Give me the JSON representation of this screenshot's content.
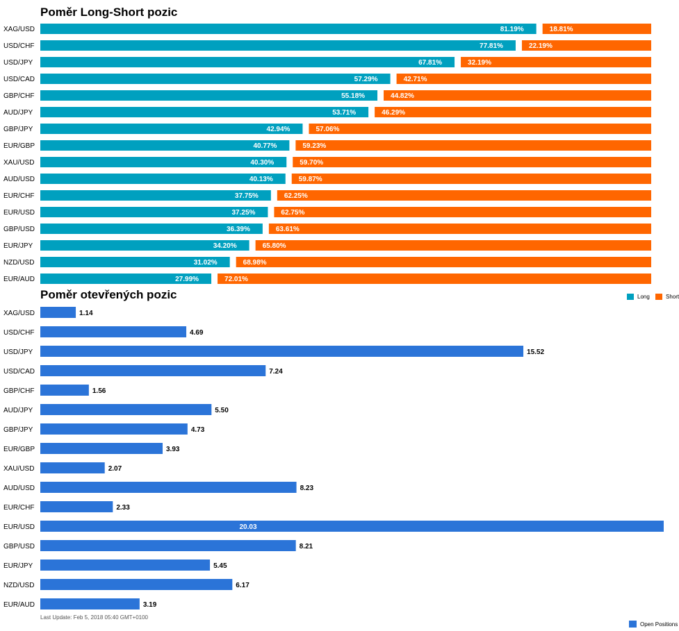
{
  "chart_data": [
    {
      "type": "bar",
      "title": "Poměr Long-Short pozic",
      "orientation": "horizontal",
      "stacked": true,
      "categories": [
        "XAG/USD",
        "USD/CHF",
        "USD/JPY",
        "USD/CAD",
        "GBP/CHF",
        "AUD/JPY",
        "GBP/JPY",
        "EUR/GBP",
        "XAU/USD",
        "AUD/USD",
        "EUR/CHF",
        "EUR/USD",
        "GBP/USD",
        "EUR/JPY",
        "NZD/USD",
        "EUR/AUD"
      ],
      "series": [
        {
          "name": "Long",
          "color": "#00a0bf",
          "values": [
            81.19,
            77.81,
            67.81,
            57.29,
            55.18,
            53.71,
            42.94,
            40.77,
            40.3,
            40.13,
            37.75,
            37.25,
            36.39,
            34.2,
            31.02,
            27.99
          ],
          "labels": [
            "81.19%",
            "77.81%",
            "67.81%",
            "57.29%",
            "55.18%",
            "53.71%",
            "42.94%",
            "40.77%",
            "40.30%",
            "40.13%",
            "37.75%",
            "37.25%",
            "36.39%",
            "34.20%",
            "31.02%",
            "27.99%"
          ]
        },
        {
          "name": "Short",
          "color": "#ff6600",
          "values": [
            18.81,
            22.19,
            32.19,
            42.71,
            44.82,
            46.29,
            57.06,
            59.23,
            59.7,
            59.87,
            62.25,
            62.75,
            63.61,
            65.8,
            68.98,
            72.01
          ],
          "labels": [
            "18.81%",
            "22.19%",
            "32.19%",
            "42.71%",
            "44.82%",
            "46.29%",
            "57.06%",
            "59.23%",
            "59.70%",
            "59.87%",
            "62.25%",
            "62.75%",
            "63.61%",
            "65.80%",
            "68.98%",
            "72.01%"
          ]
        }
      ],
      "xlim": [
        0,
        100
      ],
      "legend": "bottom-right"
    },
    {
      "type": "bar",
      "title": "Poměr otevřených pozic",
      "orientation": "horizontal",
      "categories": [
        "XAG/USD",
        "USD/CHF",
        "USD/JPY",
        "USD/CAD",
        "GBP/CHF",
        "AUD/JPY",
        "GBP/JPY",
        "EUR/GBP",
        "XAU/USD",
        "AUD/USD",
        "EUR/CHF",
        "EUR/USD",
        "GBP/USD",
        "EUR/JPY",
        "NZD/USD",
        "EUR/AUD"
      ],
      "series": [
        {
          "name": "Open Positions",
          "color": "#2b74d8",
          "values": [
            1.14,
            4.69,
            15.52,
            7.24,
            1.56,
            5.5,
            4.73,
            3.93,
            2.07,
            8.23,
            2.33,
            20.03,
            8.21,
            5.45,
            6.17,
            3.19
          ],
          "labels": [
            "1.14",
            "4.69",
            "15.52",
            "7.24",
            "1.56",
            "5.50",
            "4.73",
            "3.93",
            "2.07",
            "8.23",
            "2.33",
            "20.03",
            "8.21",
            "5.45",
            "6.17",
            "3.19"
          ]
        }
      ],
      "xlim": [
        0,
        20.03
      ],
      "legend": "bottom-right"
    }
  ],
  "footer": {
    "last_update": "Last Update: Feb 5, 2018 05:40 GMT+0100"
  }
}
